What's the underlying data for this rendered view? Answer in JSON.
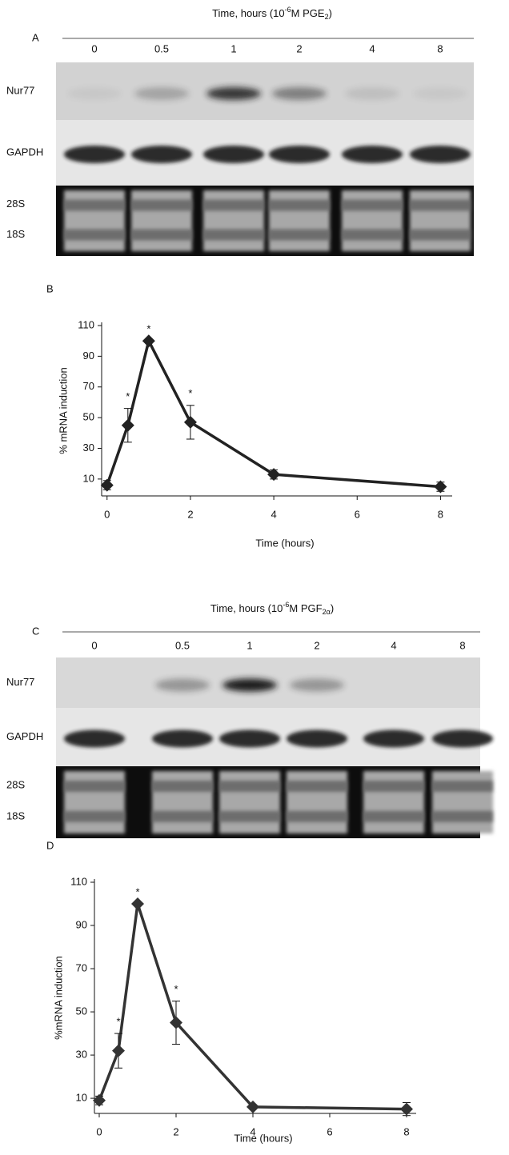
{
  "blots": [
    {
      "panel": "A",
      "title": {
        "prefix": "Time, hours (10",
        "sup": "-6",
        "middle": "M PGE",
        "sub": "2",
        "suffix": ")"
      },
      "lanes": [
        "0",
        "0.5",
        "1",
        "2",
        "4",
        "8"
      ],
      "rows": [
        "Nur77",
        "GAPDH",
        "28S",
        "18S"
      ]
    },
    {
      "panel": "C",
      "title": {
        "prefix": "Time, hours (10",
        "sup": "-6",
        "middle": "M PGF",
        "sub": "2α",
        "suffix": ")"
      },
      "lanes": [
        "0",
        "0.5",
        "1",
        "2",
        "4",
        "8"
      ],
      "rows": [
        "Nur77",
        "GAPDH",
        "28S",
        "18S"
      ]
    }
  ],
  "chart_data": [
    {
      "type": "line",
      "panel": "B",
      "ylabel": "% mRNA induction",
      "xlabel": "Time (hours)",
      "x": [
        0,
        0.5,
        1,
        2,
        4,
        8
      ],
      "values": [
        6,
        45,
        100,
        47,
        13,
        5
      ],
      "errors": [
        3,
        11,
        0,
        11,
        3,
        3
      ],
      "color": "#222222",
      "xlim": [
        -0.13,
        8.28
      ],
      "ylim": [
        -1,
        110
      ],
      "xticks": [
        0,
        2,
        4,
        6,
        8
      ],
      "yticks": [
        10,
        30,
        50,
        70,
        90,
        110
      ],
      "annotations": [
        {
          "x": 0.5,
          "text": "*"
        },
        {
          "x": 1,
          "text": "*"
        },
        {
          "x": 2,
          "text": "*"
        }
      ]
    },
    {
      "type": "line",
      "panel": "D",
      "ylabel": "%mRNA induction",
      "xlabel": "Time (hours)",
      "x": [
        0,
        0.5,
        1,
        2,
        4,
        8
      ],
      "values": [
        9,
        32,
        100,
        45,
        6,
        5
      ],
      "errors": [
        2,
        8,
        0,
        10,
        1,
        3
      ],
      "color": "#333333",
      "xlim": [
        -0.125,
        8.25
      ],
      "ylim": [
        3,
        110
      ],
      "xticks": [
        0,
        2,
        4,
        6,
        8
      ],
      "yticks": [
        10,
        30,
        50,
        70,
        90,
        110
      ],
      "annotations": [
        {
          "x": 0.5,
          "text": "*"
        },
        {
          "x": 1,
          "text": "*"
        },
        {
          "x": 2,
          "text": "*"
        }
      ]
    }
  ]
}
